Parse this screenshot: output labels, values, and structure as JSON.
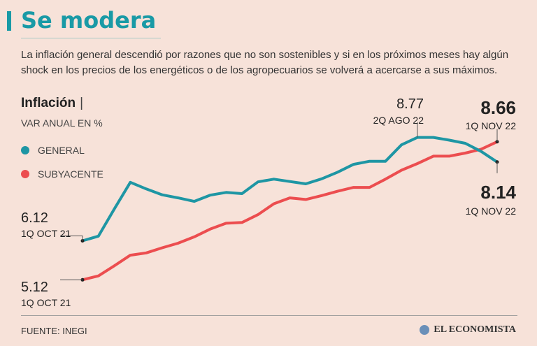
{
  "header": {
    "title": "Se modera",
    "subtitle": "La inflación general descendió por razones que no son sostenibles y si en los próximos meses hay algún shock en los precios de los energéticos o de los agropecuarios se volverá a acercarse a sus máximos."
  },
  "colors": {
    "accent": "#199aa6",
    "general": "#1e96a4",
    "subyacente": "#ec4d4f"
  },
  "chart_data": {
    "type": "line",
    "title": "Inflación",
    "subtitle": "VAR ANUAL EN %",
    "legend": [
      {
        "name": "GENERAL",
        "color": "#1e96a4"
      },
      {
        "name": "SUBYACENTE",
        "color": "#ec4d4f"
      }
    ],
    "x_start": "1Q OCT 21",
    "x_end": "1Q NOV 22",
    "series": [
      {
        "name": "GENERAL",
        "values": [
          6.12,
          6.24,
          6.94,
          7.62,
          7.45,
          7.3,
          7.22,
          7.13,
          7.29,
          7.36,
          7.33,
          7.63,
          7.7,
          7.64,
          7.58,
          7.71,
          7.88,
          8.08,
          8.16,
          8.16,
          8.58,
          8.77,
          8.77,
          8.7,
          8.62,
          8.41,
          8.14
        ]
      },
      {
        "name": "SUBYACENTE",
        "values": [
          5.12,
          5.22,
          5.48,
          5.75,
          5.81,
          5.94,
          6.06,
          6.22,
          6.42,
          6.57,
          6.59,
          6.79,
          7.07,
          7.22,
          7.18,
          7.28,
          7.39,
          7.49,
          7.49,
          7.7,
          7.93,
          8.1,
          8.29,
          8.29,
          8.37,
          8.47,
          8.66
        ]
      }
    ],
    "annotations": [
      {
        "value": "6.12",
        "label": "1Q OCT 21",
        "series": "GENERAL"
      },
      {
        "value": "5.12",
        "label": "1Q OCT 21",
        "series": "SUBYACENTE"
      },
      {
        "value": "8.77",
        "label": "2Q AGO 22",
        "series": "GENERAL"
      },
      {
        "value": "8.66",
        "label": "1Q NOV 22",
        "series": "SUBYACENTE"
      },
      {
        "value": "8.14",
        "label": "1Q NOV 22",
        "series": "GENERAL"
      }
    ]
  },
  "footer": {
    "source": "FUENTE: INEGI",
    "brand": "EL ECONOMISTA"
  }
}
